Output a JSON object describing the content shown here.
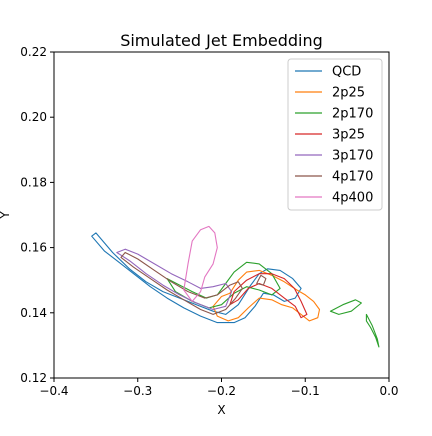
{
  "chart_data": {
    "type": "line",
    "title": "Simulated Jet Embedding",
    "xlabel": "X",
    "ylabel": "Y",
    "xlim": [
      -0.4,
      0.0
    ],
    "ylim": [
      0.12,
      0.22
    ],
    "xticks": [
      -0.4,
      -0.3,
      -0.2,
      -0.1,
      0.0
    ],
    "xtick_labels": [
      "−0.4",
      "−0.3",
      "−0.2",
      "−0.1",
      "0.0"
    ],
    "yticks": [
      0.12,
      0.14,
      0.16,
      0.18,
      0.2,
      0.22
    ],
    "ytick_labels": [
      "0.12",
      "0.14",
      "0.16",
      "0.18",
      "0.20",
      "0.22"
    ],
    "grid": false,
    "legend_position": "top-right",
    "series": [
      {
        "name": "QCD",
        "color": "#1f77b4",
        "contours": [
          [
            [
              -0.355,
              0.1635
            ],
            [
              -0.35,
              0.1645
            ],
            [
              -0.33,
              0.1585
            ],
            [
              -0.31,
              0.1535
            ],
            [
              -0.29,
              0.1495
            ],
            [
              -0.27,
              0.1465
            ],
            [
              -0.25,
              0.1445
            ],
            [
              -0.23,
              0.1425
            ],
            [
              -0.21,
              0.1405
            ],
            [
              -0.195,
              0.1395
            ],
            [
              -0.18,
              0.1425
            ],
            [
              -0.165,
              0.1485
            ],
            [
              -0.155,
              0.152
            ],
            [
              -0.145,
              0.1535
            ],
            [
              -0.13,
              0.153
            ],
            [
              -0.115,
              0.1505
            ],
            [
              -0.105,
              0.1475
            ],
            [
              -0.112,
              0.1445
            ],
            [
              -0.125,
              0.1435
            ],
            [
              -0.138,
              0.1455
            ],
            [
              -0.15,
              0.146
            ],
            [
              -0.16,
              0.142
            ],
            [
              -0.172,
              0.1385
            ],
            [
              -0.185,
              0.137
            ],
            [
              -0.205,
              0.137
            ],
            [
              -0.225,
              0.139
            ],
            [
              -0.245,
              0.1415
            ],
            [
              -0.265,
              0.1445
            ],
            [
              -0.285,
              0.148
            ],
            [
              -0.305,
              0.152
            ],
            [
              -0.325,
              0.156
            ],
            [
              -0.34,
              0.159
            ],
            [
              -0.355,
              0.1635
            ]
          ]
        ]
      },
      {
        "name": "2p25",
        "color": "#ff7f0e",
        "contours": [
          [
            [
              -0.2,
              0.145
            ],
            [
              -0.19,
              0.146
            ],
            [
              -0.18,
              0.15
            ],
            [
              -0.17,
              0.1525
            ],
            [
              -0.155,
              0.153
            ],
            [
              -0.14,
              0.1515
            ],
            [
              -0.125,
              0.1495
            ],
            [
              -0.11,
              0.147
            ],
            [
              -0.1,
              0.1455
            ],
            [
              -0.09,
              0.1435
            ],
            [
              -0.083,
              0.141
            ],
            [
              -0.085,
              0.1385
            ],
            [
              -0.095,
              0.1375
            ],
            [
              -0.105,
              0.1395
            ],
            [
              -0.115,
              0.1415
            ],
            [
              -0.128,
              0.1425
            ],
            [
              -0.14,
              0.144
            ],
            [
              -0.155,
              0.1445
            ],
            [
              -0.168,
              0.1415
            ],
            [
              -0.18,
              0.1385
            ],
            [
              -0.192,
              0.1375
            ],
            [
              -0.205,
              0.139
            ],
            [
              -0.21,
              0.142
            ],
            [
              -0.2,
              0.145
            ]
          ]
        ]
      },
      {
        "name": "2p170",
        "color": "#2ca02c",
        "contours": [
          [
            [
              -0.265,
              0.1505
            ],
            [
              -0.25,
              0.1485
            ],
            [
              -0.235,
              0.1465
            ],
            [
              -0.218,
              0.1445
            ],
            [
              -0.205,
              0.1455
            ],
            [
              -0.195,
              0.149
            ],
            [
              -0.185,
              0.1525
            ],
            [
              -0.17,
              0.1555
            ],
            [
              -0.155,
              0.155
            ],
            [
              -0.14,
              0.152
            ],
            [
              -0.13,
              0.1475
            ],
            [
              -0.14,
              0.1455
            ],
            [
              -0.155,
              0.147
            ],
            [
              -0.17,
              0.148
            ],
            [
              -0.185,
              0.146
            ],
            [
              -0.2,
              0.1425
            ],
            [
              -0.215,
              0.1415
            ],
            [
              -0.235,
              0.1435
            ],
            [
              -0.255,
              0.1465
            ],
            [
              -0.265,
              0.1505
            ]
          ],
          [
            [
              -0.07,
              0.1405
            ],
            [
              -0.055,
              0.1425
            ],
            [
              -0.04,
              0.144
            ],
            [
              -0.033,
              0.143
            ],
            [
              -0.045,
              0.1405
            ],
            [
              -0.06,
              0.1395
            ],
            [
              -0.07,
              0.1405
            ]
          ],
          [
            [
              -0.027,
              0.1395
            ],
            [
              -0.02,
              0.136
            ],
            [
              -0.014,
              0.132
            ],
            [
              -0.012,
              0.1295
            ],
            [
              -0.016,
              0.1325
            ],
            [
              -0.022,
              0.1355
            ],
            [
              -0.027,
              0.1375
            ],
            [
              -0.027,
              0.1395
            ]
          ]
        ]
      },
      {
        "name": "3p25",
        "color": "#d62728",
        "contours": [
          [
            [
              -0.185,
              0.1465
            ],
            [
              -0.17,
              0.15
            ],
            [
              -0.155,
              0.152
            ],
            [
              -0.14,
              0.152
            ],
            [
              -0.125,
              0.1505
            ],
            [
              -0.113,
              0.1475
            ],
            [
              -0.105,
              0.1435
            ],
            [
              -0.098,
              0.1395
            ],
            [
              -0.105,
              0.1385
            ],
            [
              -0.112,
              0.142
            ],
            [
              -0.125,
              0.1445
            ],
            [
              -0.14,
              0.1475
            ],
            [
              -0.155,
              0.149
            ],
            [
              -0.168,
              0.1475
            ],
            [
              -0.18,
              0.144
            ],
            [
              -0.19,
              0.1425
            ],
            [
              -0.185,
              0.1465
            ]
          ]
        ]
      },
      {
        "name": "3p170",
        "color": "#9467bd",
        "contours": [
          [
            [
              -0.325,
              0.1585
            ],
            [
              -0.31,
              0.156
            ],
            [
              -0.29,
              0.152
            ],
            [
              -0.27,
              0.1485
            ],
            [
              -0.25,
              0.1455
            ],
            [
              -0.23,
              0.143
            ],
            [
              -0.21,
              0.141
            ],
            [
              -0.195,
              0.142
            ],
            [
              -0.188,
              0.1465
            ],
            [
              -0.195,
              0.149
            ],
            [
              -0.21,
              0.148
            ],
            [
              -0.225,
              0.1475
            ],
            [
              -0.24,
              0.1495
            ],
            [
              -0.26,
              0.152
            ],
            [
              -0.28,
              0.155
            ],
            [
              -0.3,
              0.158
            ],
            [
              -0.315,
              0.1595
            ],
            [
              -0.325,
              0.1585
            ]
          ]
        ]
      },
      {
        "name": "4p170",
        "color": "#8c564b",
        "contours": [
          [
            [
              -0.32,
              0.157
            ],
            [
              -0.305,
              0.154
            ],
            [
              -0.285,
              0.1505
            ],
            [
              -0.265,
              0.147
            ],
            [
              -0.245,
              0.144
            ],
            [
              -0.225,
              0.141
            ],
            [
              -0.21,
              0.1395
            ],
            [
              -0.195,
              0.141
            ],
            [
              -0.183,
              0.1445
            ],
            [
              -0.175,
              0.1475
            ],
            [
              -0.18,
              0.1495
            ],
            [
              -0.19,
              0.1485
            ],
            [
              -0.205,
              0.1455
            ],
            [
              -0.22,
              0.1445
            ],
            [
              -0.24,
              0.1465
            ],
            [
              -0.26,
              0.1495
            ],
            [
              -0.28,
              0.153
            ],
            [
              -0.3,
              0.1565
            ],
            [
              -0.315,
              0.1585
            ],
            [
              -0.32,
              0.157
            ]
          ],
          [
            [
              -0.158,
              0.149
            ],
            [
              -0.153,
              0.1515
            ],
            [
              -0.147,
              0.1505
            ],
            [
              -0.15,
              0.1485
            ],
            [
              -0.158,
              0.149
            ]
          ]
        ]
      },
      {
        "name": "4p400",
        "color": "#e377c2",
        "contours": [
          [
            [
              -0.245,
              0.147
            ],
            [
              -0.24,
              0.155
            ],
            [
              -0.235,
              0.162
            ],
            [
              -0.225,
              0.1655
            ],
            [
              -0.215,
              0.1665
            ],
            [
              -0.208,
              0.1645
            ],
            [
              -0.205,
              0.16
            ],
            [
              -0.21,
              0.155
            ],
            [
              -0.22,
              0.151
            ],
            [
              -0.225,
              0.1465
            ],
            [
              -0.235,
              0.1435
            ],
            [
              -0.245,
              0.147
            ]
          ]
        ]
      }
    ]
  }
}
